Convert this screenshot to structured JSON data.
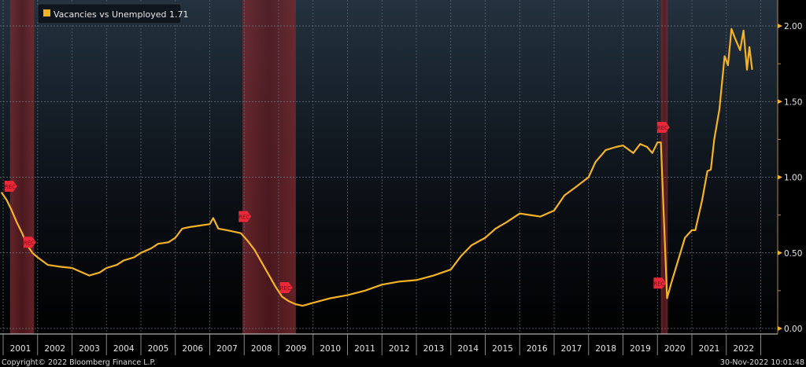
{
  "chart_data": {
    "type": "line",
    "title": "",
    "legend": {
      "label": "Vacancies vs Unemployed",
      "last_value": "1.71",
      "placement": "top-left"
    },
    "series": [
      {
        "name": "Vacancies vs Unemployed",
        "color": "#f5b324",
        "x": [
          2000.95,
          2001.1,
          2001.25,
          2001.4,
          2001.55,
          2001.7,
          2001.85,
          2002.0,
          2002.3,
          2002.6,
          2003.0,
          2003.3,
          2003.5,
          2003.8,
          2004.0,
          2004.3,
          2004.5,
          2004.8,
          2005.0,
          2005.3,
          2005.5,
          2005.8,
          2006.0,
          2006.2,
          2006.4,
          2006.7,
          2007.0,
          2007.1,
          2007.25,
          2007.5,
          2007.9,
          2008.1,
          2008.3,
          2008.5,
          2008.7,
          2008.9,
          2009.1,
          2009.3,
          2009.5,
          2009.7,
          2010.0,
          2010.5,
          2011.0,
          2011.5,
          2012.0,
          2012.5,
          2013.0,
          2013.5,
          2014.0,
          2014.3,
          2014.6,
          2015.0,
          2015.3,
          2015.6,
          2016.0,
          2016.3,
          2016.6,
          2017.0,
          2017.3,
          2017.6,
          2018.0,
          2018.2,
          2018.5,
          2018.8,
          2019.0,
          2019.3,
          2019.5,
          2019.7,
          2019.85,
          2020.0,
          2020.1,
          2020.28,
          2020.4,
          2020.6,
          2020.8,
          2021.0,
          2021.1,
          2021.3,
          2021.45,
          2021.55,
          2021.65,
          2021.8,
          2021.95,
          2022.05,
          2022.15,
          2022.25,
          2022.4,
          2022.5,
          2022.6,
          2022.67,
          2022.75
        ],
        "values": [
          0.9,
          0.85,
          0.78,
          0.7,
          0.63,
          0.55,
          0.5,
          0.47,
          0.42,
          0.41,
          0.4,
          0.37,
          0.35,
          0.37,
          0.4,
          0.42,
          0.45,
          0.47,
          0.5,
          0.53,
          0.56,
          0.57,
          0.6,
          0.66,
          0.67,
          0.68,
          0.69,
          0.73,
          0.66,
          0.65,
          0.63,
          0.58,
          0.52,
          0.44,
          0.36,
          0.28,
          0.21,
          0.18,
          0.16,
          0.15,
          0.17,
          0.2,
          0.22,
          0.25,
          0.29,
          0.31,
          0.32,
          0.35,
          0.39,
          0.48,
          0.55,
          0.6,
          0.66,
          0.7,
          0.76,
          0.75,
          0.74,
          0.78,
          0.88,
          0.93,
          1.0,
          1.1,
          1.18,
          1.2,
          1.21,
          1.16,
          1.22,
          1.2,
          1.16,
          1.23,
          1.23,
          0.2,
          0.3,
          0.45,
          0.6,
          0.65,
          0.65,
          0.85,
          1.04,
          1.05,
          1.25,
          1.45,
          1.8,
          1.74,
          1.98,
          1.92,
          1.84,
          1.97,
          1.71,
          1.86,
          1.71
        ]
      }
    ],
    "recessions": [
      [
        2001.2,
        2001.9
      ],
      [
        2007.95,
        2009.5
      ],
      [
        2020.1,
        2020.3
      ]
    ],
    "recession_markers": [
      {
        "label": "REC",
        "x": 2001.2,
        "v": 0.94
      },
      {
        "label": "REC",
        "x": 2001.75,
        "v": 0.57
      },
      {
        "label": "REC",
        "x": 2008.0,
        "v": 0.74
      },
      {
        "label": "REC",
        "x": 2009.2,
        "v": 0.27
      },
      {
        "label": "REC",
        "x": 2020.15,
        "v": 1.33
      },
      {
        "label": "REC",
        "x": 2020.05,
        "v": 0.3
      }
    ],
    "xlabel": "",
    "ylabel": "",
    "xlim": [
      2000.93,
      2023.5
    ],
    "ylim": [
      0,
      2.0
    ],
    "x_tick_labels": [
      "2001",
      "2002",
      "2003",
      "2004",
      "2005",
      "2006",
      "2007",
      "2008",
      "2009",
      "2010",
      "2011",
      "2012",
      "2013",
      "2014",
      "2015",
      "2016",
      "2017",
      "2018",
      "2019",
      "2020",
      "2021",
      "2022"
    ],
    "y_ticks": [
      0,
      0.5,
      1.0,
      1.5,
      2.0
    ],
    "y_tick_labels": [
      "0.00",
      "0.50",
      "1.00",
      "1.50",
      "2.00"
    ],
    "grid": true
  },
  "footer": {
    "copyright": "Copyright© 2022 Bloomberg Finance L.P.",
    "timestamp": "30-Nov-2022 10:01:48"
  }
}
